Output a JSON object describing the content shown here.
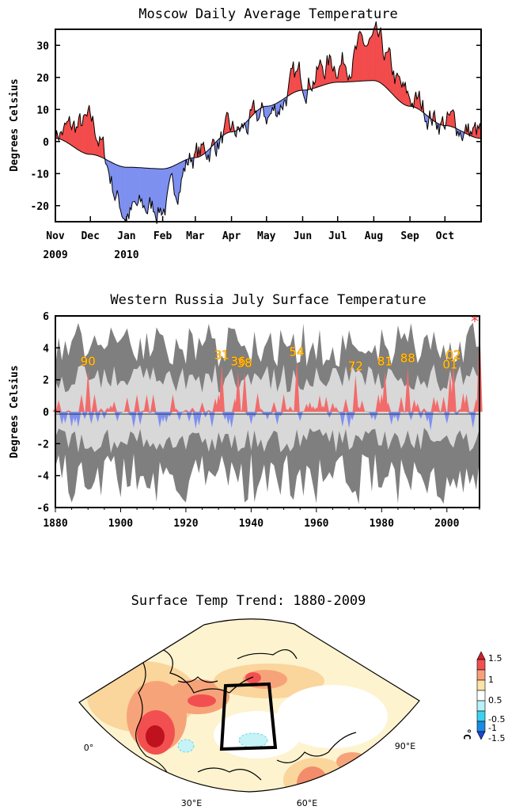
{
  "chart_data": [
    {
      "type": "area",
      "title": "Moscow Daily Average Temperature",
      "ylabel": "Degrees Celsius",
      "xlabel": "",
      "ylim": [
        -25,
        35
      ],
      "yticks": [
        -20,
        -10,
        0,
        10,
        20,
        30
      ],
      "x_tick_labels": [
        "Nov",
        "Dec",
        "Jan",
        "Feb",
        "Mar",
        "Apr",
        "May",
        "Jun",
        "Jul",
        "Aug",
        "Sep",
        "Oct"
      ],
      "x_year_labels": [
        {
          "month": "Nov",
          "year": "2009"
        },
        {
          "month": "Jan",
          "year": "2010"
        }
      ],
      "fill_colors": {
        "above": "#f24b4b",
        "below": "#7d8ff0"
      },
      "series": [
        {
          "key": "normal",
          "values_by_month_start": [
            1,
            -4,
            -8,
            -8.5,
            -5,
            3,
            11,
            16,
            18.5,
            19,
            11,
            5,
            1
          ]
        },
        {
          "key": "daily",
          "values_by_month_start": [
            3,
            5,
            -22,
            -20,
            -4,
            2,
            8,
            20,
            25,
            30,
            13,
            6,
            2
          ]
        }
      ]
    },
    {
      "type": "bar",
      "title": "Western Russia July Surface Temperature",
      "ylabel": "Degrees Celsius",
      "xlabel": "",
      "xlim": [
        1880,
        2010
      ],
      "ylim": [
        -6,
        6
      ],
      "yticks": [
        -6,
        -4,
        -2,
        0,
        2,
        4,
        6
      ],
      "xticks": [
        1880,
        1900,
        1920,
        1940,
        1960,
        1980,
        2000
      ],
      "fill_colors": {
        "positive": "#f26b6b",
        "negative": "#7d8ff0",
        "envelope_outer": "#7f7f7f",
        "envelope_inner": "#d8d8d8"
      },
      "highlighted_years": [
        {
          "label": "90",
          "year": 1890,
          "value": 2.6
        },
        {
          "label": "31",
          "year": 1931,
          "value": 3.0
        },
        {
          "label": "36",
          "year": 1936,
          "value": 2.6
        },
        {
          "label": "38",
          "year": 1938,
          "value": 2.5
        },
        {
          "label": "54",
          "year": 1954,
          "value": 3.2
        },
        {
          "label": "72",
          "year": 1972,
          "value": 2.3
        },
        {
          "label": "81",
          "year": 1981,
          "value": 2.6
        },
        {
          "label": "88",
          "year": 1988,
          "value": 2.8
        },
        {
          "label": "01",
          "year": 2001,
          "value": 2.4
        },
        {
          "label": "02",
          "year": 2002,
          "value": 3.0
        }
      ],
      "marker": {
        "symbol": "*",
        "year": 2010,
        "color": "#e83b3b"
      }
    },
    {
      "type": "heatmap",
      "title": "Surface Temp Trend: 1880-2009",
      "colorbar_unit": "°C",
      "colorbar_ticks": [
        "1.5",
        "1",
        "0.5",
        "-0.5",
        "-1",
        "-1.5"
      ],
      "colorbar_colors": [
        "#d01f2f",
        "#f25050",
        "#f9a07a",
        "#fde3a6",
        "#ffffff",
        "#b9f1f4",
        "#3dd1ef",
        "#1a8ae3",
        "#1a47d8"
      ],
      "lon_labels": [
        "0°",
        "30°E",
        "60°E",
        "90°E"
      ]
    }
  ]
}
